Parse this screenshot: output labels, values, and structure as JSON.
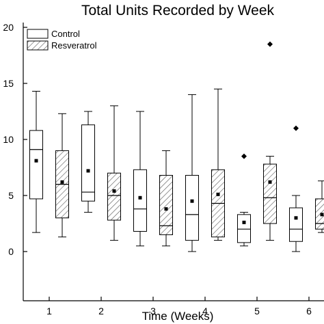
{
  "chart_data": {
    "type": "box",
    "title": "Total Units Recorded by Week",
    "xlabel": "Time (Weeks)",
    "ylabel": "",
    "ylim": [
      -2.5,
      20
    ],
    "yticks": [
      0,
      5,
      10,
      15,
      20
    ],
    "categories": [
      "1",
      "2",
      "3",
      "4",
      "5",
      "6"
    ],
    "legend_position": "top-left",
    "grid": false,
    "series": [
      {
        "name": "Control",
        "fill": "none",
        "boxes": [
          {
            "week": "1",
            "whisker_low": 1.7,
            "q1": 4.7,
            "median": 9.1,
            "q3": 10.8,
            "whisker_high": 14.3,
            "mean": 8.1,
            "outliers": []
          },
          {
            "week": "2",
            "whisker_low": 3.5,
            "q1": 4.5,
            "median": 5.3,
            "q3": 11.3,
            "whisker_high": 12.5,
            "mean": 7.2,
            "outliers": []
          },
          {
            "week": "3",
            "whisker_low": 0.5,
            "q1": 1.8,
            "median": 3.8,
            "q3": 7.3,
            "whisker_high": 12.5,
            "mean": 4.8,
            "outliers": []
          },
          {
            "week": "4",
            "whisker_low": 0.0,
            "q1": 1.0,
            "median": 3.3,
            "q3": 6.8,
            "whisker_high": 14.0,
            "mean": 4.5,
            "outliers": []
          },
          {
            "week": "5",
            "whisker_low": 0.5,
            "q1": 0.8,
            "median": 2.0,
            "q3": 3.3,
            "whisker_high": 3.5,
            "mean": 2.6,
            "outliers": [
              8.5
            ]
          },
          {
            "week": "6",
            "whisker_low": 0.0,
            "q1": 0.9,
            "median": 2.0,
            "q3": 3.9,
            "whisker_high": 5.0,
            "mean": 3.0,
            "outliers": [
              11.0
            ]
          }
        ]
      },
      {
        "name": "Resveratrol",
        "fill": "hatched",
        "boxes": [
          {
            "week": "1",
            "whisker_low": 1.3,
            "q1": 3.0,
            "median": 6.0,
            "q3": 9.0,
            "whisker_high": 12.3,
            "mean": 6.2,
            "outliers": []
          },
          {
            "week": "2",
            "whisker_low": 1.0,
            "q1": 2.8,
            "median": 5.0,
            "q3": 7.0,
            "whisker_high": 13.0,
            "mean": 5.4,
            "outliers": []
          },
          {
            "week": "3",
            "whisker_low": 0.5,
            "q1": 1.5,
            "median": 2.3,
            "q3": 6.8,
            "whisker_high": 9.0,
            "mean": 3.8,
            "outliers": []
          },
          {
            "week": "4",
            "whisker_low": 1.0,
            "q1": 1.3,
            "median": 4.3,
            "q3": 7.3,
            "whisker_high": 14.5,
            "mean": 5.1,
            "outliers": []
          },
          {
            "week": "5",
            "whisker_low": 1.0,
            "q1": 2.5,
            "median": 4.8,
            "q3": 7.8,
            "whisker_high": 8.5,
            "mean": 6.2,
            "outliers": [
              18.5
            ]
          },
          {
            "week": "6",
            "whisker_low": 1.7,
            "q1": 2.0,
            "median": 2.5,
            "q3": 4.7,
            "whisker_high": 6.3,
            "mean": 3.3,
            "outliers": []
          }
        ]
      }
    ]
  }
}
